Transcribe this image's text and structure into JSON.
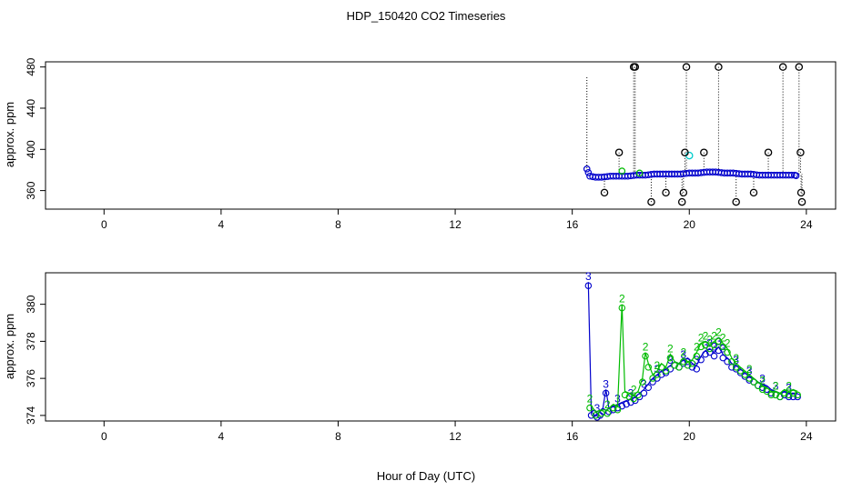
{
  "title": "HDP_150420  CO2 Timeseries",
  "xlabel": "Hour of Day (UTC)",
  "colors": {
    "blue": "#0000cc",
    "green": "#00bb00",
    "cyan": "#00cccc",
    "black": "#000000"
  },
  "chart_data": [
    {
      "type": "scatter",
      "ylabel": "approx. ppm",
      "xlim": [
        -2,
        25
      ],
      "ylim": [
        342,
        485
      ],
      "xticks": [
        0,
        4,
        8,
        12,
        16,
        20,
        24
      ],
      "yticks": [
        360,
        400,
        440,
        480
      ],
      "baseline": [
        [
          16.5,
          381
        ],
        [
          16.6,
          374
        ],
        [
          16.8,
          373
        ],
        [
          17.0,
          373
        ],
        [
          17.3,
          374
        ],
        [
          17.6,
          374
        ],
        [
          17.9,
          374
        ],
        [
          18.2,
          375
        ],
        [
          18.5,
          375
        ],
        [
          18.8,
          376
        ],
        [
          19.1,
          376
        ],
        [
          19.4,
          376
        ],
        [
          19.7,
          376
        ],
        [
          20.0,
          377
        ],
        [
          20.3,
          377
        ],
        [
          20.6,
          378
        ],
        [
          20.9,
          378
        ],
        [
          21.2,
          377
        ],
        [
          21.5,
          377
        ],
        [
          21.8,
          376
        ],
        [
          22.1,
          376
        ],
        [
          22.4,
          375
        ],
        [
          22.7,
          375
        ],
        [
          23.0,
          375
        ],
        [
          23.3,
          375
        ],
        [
          23.6,
          375
        ],
        [
          23.7,
          374
        ]
      ],
      "outliers": [
        [
          17.1,
          358
        ],
        [
          17.6,
          397
        ],
        [
          18.1,
          480
        ],
        [
          18.15,
          480
        ],
        [
          18.7,
          349
        ],
        [
          19.2,
          358
        ],
        [
          19.75,
          349
        ],
        [
          19.8,
          358
        ],
        [
          19.85,
          397
        ],
        [
          19.9,
          480
        ],
        [
          20.5,
          397
        ],
        [
          21.0,
          480
        ],
        [
          21.6,
          349
        ],
        [
          22.2,
          358
        ],
        [
          22.7,
          397
        ],
        [
          23.2,
          480
        ],
        [
          23.75,
          480
        ],
        [
          23.8,
          397
        ],
        [
          23.82,
          358
        ],
        [
          23.85,
          349
        ]
      ],
      "cyan_points": [
        [
          20.0,
          394
        ]
      ],
      "green_points": [
        [
          17.7,
          379
        ],
        [
          18.3,
          377
        ]
      ]
    },
    {
      "type": "line",
      "ylabel": "approx. ppm",
      "xlim": [
        -2,
        25
      ],
      "ylim": [
        373.7,
        381.7
      ],
      "xticks": [
        0,
        4,
        8,
        12,
        16,
        20,
        24
      ],
      "yticks": [
        374,
        376,
        378,
        380
      ],
      "series": [
        {
          "marker": "3",
          "color": "#0000cc",
          "points": [
            [
              16.55,
              381.2
            ],
            [
              16.65,
              374.2
            ],
            [
              16.75,
              374.3
            ],
            [
              16.85,
              374.1
            ],
            [
              16.95,
              374.2
            ],
            [
              17.05,
              374.4
            ],
            [
              17.15,
              375.4
            ],
            [
              17.25,
              374.4
            ],
            [
              17.4,
              374.5
            ],
            [
              17.55,
              374.6
            ],
            [
              17.7,
              374.7
            ],
            [
              17.85,
              374.8
            ],
            [
              18.0,
              374.9
            ],
            [
              18.15,
              375.0
            ],
            [
              18.3,
              375.2
            ],
            [
              18.45,
              375.4
            ],
            [
              18.6,
              375.7
            ],
            [
              18.75,
              376.0
            ],
            [
              18.9,
              376.2
            ],
            [
              19.05,
              376.4
            ],
            [
              19.2,
              376.5
            ],
            [
              19.35,
              376.7
            ],
            [
              19.5,
              376.9
            ],
            [
              19.65,
              376.8
            ],
            [
              19.8,
              377.0
            ],
            [
              19.95,
              377.1
            ],
            [
              20.1,
              376.8
            ],
            [
              20.25,
              376.7
            ],
            [
              20.4,
              377.2
            ],
            [
              20.55,
              377.5
            ],
            [
              20.7,
              377.6
            ],
            [
              20.85,
              377.4
            ],
            [
              21.0,
              377.7
            ],
            [
              21.15,
              377.3
            ],
            [
              21.3,
              377.1
            ],
            [
              21.45,
              376.8
            ],
            [
              21.6,
              376.7
            ],
            [
              21.75,
              376.5
            ],
            [
              21.9,
              376.3
            ],
            [
              22.05,
              376.1
            ],
            [
              22.2,
              376.0
            ],
            [
              22.35,
              375.8
            ],
            [
              22.5,
              375.7
            ],
            [
              22.65,
              375.6
            ],
            [
              22.8,
              375.4
            ],
            [
              22.95,
              375.3
            ],
            [
              23.1,
              375.2
            ],
            [
              23.25,
              375.3
            ],
            [
              23.4,
              375.2
            ],
            [
              23.55,
              375.2
            ],
            [
              23.7,
              375.2
            ]
          ]
        },
        {
          "marker": "2",
          "color": "#00bb00",
          "points": [
            [
              16.6,
              374.6
            ],
            [
              16.8,
              374.2
            ],
            [
              17.0,
              374.3
            ],
            [
              17.2,
              374.3
            ],
            [
              17.4,
              374.6
            ],
            [
              17.55,
              374.5
            ],
            [
              17.7,
              380.0
            ],
            [
              17.8,
              375.3
            ],
            [
              17.95,
              375.2
            ],
            [
              18.1,
              375.1
            ],
            [
              18.25,
              375.3
            ],
            [
              18.4,
              376.0
            ],
            [
              18.5,
              377.4
            ],
            [
              18.6,
              376.8
            ],
            [
              18.75,
              376.2
            ],
            [
              18.9,
              376.4
            ],
            [
              19.05,
              376.8
            ],
            [
              19.2,
              376.6
            ],
            [
              19.35,
              377.3
            ],
            [
              19.5,
              376.9
            ],
            [
              19.65,
              376.8
            ],
            [
              19.8,
              377.1
            ],
            [
              19.95,
              376.9
            ],
            [
              20.1,
              377.0
            ],
            [
              20.25,
              377.4
            ],
            [
              20.4,
              377.9
            ],
            [
              20.55,
              378.0
            ],
            [
              20.7,
              377.8
            ],
            [
              20.85,
              378.0
            ],
            [
              21.0,
              378.2
            ],
            [
              21.15,
              377.9
            ],
            [
              21.3,
              377.6
            ],
            [
              21.45,
              377.1
            ],
            [
              21.6,
              376.8
            ],
            [
              21.75,
              376.6
            ],
            [
              21.9,
              376.4
            ],
            [
              22.05,
              376.2
            ],
            [
              22.2,
              376.0
            ],
            [
              22.35,
              375.8
            ],
            [
              22.5,
              375.6
            ],
            [
              22.65,
              375.5
            ],
            [
              22.8,
              375.3
            ],
            [
              22.95,
              375.3
            ],
            [
              23.1,
              375.2
            ],
            [
              23.25,
              375.4
            ],
            [
              23.4,
              375.3
            ],
            [
              23.55,
              375.4
            ],
            [
              23.7,
              375.3
            ]
          ]
        }
      ]
    }
  ]
}
